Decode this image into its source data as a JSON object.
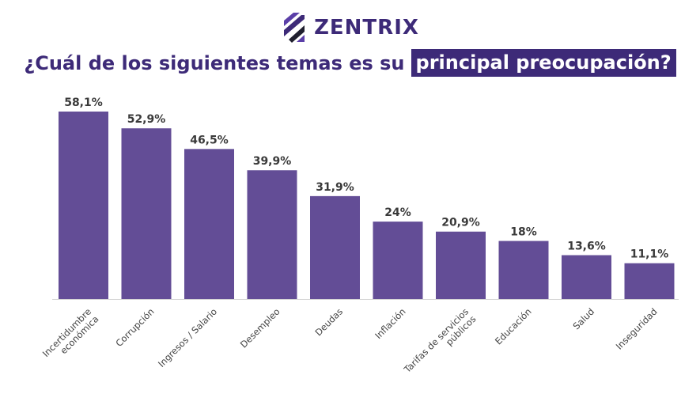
{
  "brand": {
    "name": "ZENTRIX"
  },
  "title": {
    "prefix": "¿Cuál de los siguientes temas es su",
    "highlight": "principal preocupación?"
  },
  "chart_data": {
    "type": "bar",
    "categories": [
      [
        "Incertidumbre",
        "económica"
      ],
      [
        "Corrupción"
      ],
      [
        "Ingresos / Salario"
      ],
      [
        "Desempleo"
      ],
      [
        "Deudas"
      ],
      [
        "Inflación"
      ],
      [
        "Tarifas de servicios",
        "públicos"
      ],
      [
        "Educación"
      ],
      [
        "Salud"
      ],
      [
        "Inseguridad"
      ]
    ],
    "values": [
      58.1,
      52.9,
      46.5,
      39.9,
      31.9,
      24,
      20.9,
      18,
      13.6,
      11.1
    ],
    "value_labels": [
      "58,1%",
      "52,9%",
      "46,5%",
      "39,9%",
      "31,9%",
      "24%",
      "20,9%",
      "18%",
      "13,6%",
      "11,1%"
    ],
    "ylim": [
      0,
      58.1
    ],
    "grid": false,
    "legend": "none",
    "bar_color": "#634d96",
    "title_color": "#3d2a78"
  }
}
